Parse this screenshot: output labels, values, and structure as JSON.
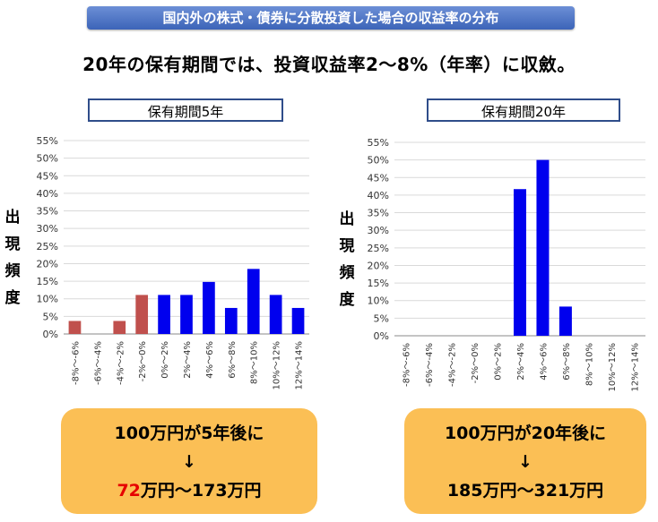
{
  "banner": "国内外の株式・債券に分散投資した場合の収益率の分布",
  "headline": "20年の保有期間では、投資収益率2～8%（年率）に収斂。",
  "y_axis_chars": [
    "出",
    "現",
    "頻",
    "度"
  ],
  "colors": {
    "negative": "#c0504d",
    "positive": "#0000ee",
    "result_box": "#fbbf55",
    "highlight": "#e60000"
  },
  "chart_data": [
    {
      "type": "bar",
      "title": "保有期間5年",
      "ylabel": "出現頻度",
      "ylim": [
        0,
        55
      ],
      "yticks": [
        "0%",
        "5%",
        "10%",
        "15%",
        "20%",
        "25%",
        "30%",
        "35%",
        "40%",
        "45%",
        "50%",
        "55%"
      ],
      "categories": [
        "-8%～-6%",
        "-6%～-4%",
        "-4%～-2%",
        "-2%～0%",
        "0%～2%",
        "2%～4%",
        "4%～6%",
        "6%～8%",
        "8%～10%",
        "10%～12%",
        "12%～14%"
      ],
      "values": [
        3.7,
        0,
        3.7,
        11.1,
        11.1,
        11.1,
        14.8,
        7.4,
        18.5,
        11.1,
        7.4
      ],
      "bar_colors": [
        "negative",
        "negative",
        "negative",
        "negative",
        "positive",
        "positive",
        "positive",
        "positive",
        "positive",
        "positive",
        "positive"
      ],
      "grid": true
    },
    {
      "type": "bar",
      "title": "保有期間20年",
      "ylabel": "出現頻度",
      "ylim": [
        0,
        55
      ],
      "yticks": [
        "0%",
        "5%",
        "10%",
        "15%",
        "20%",
        "25%",
        "30%",
        "35%",
        "40%",
        "45%",
        "50%",
        "55%"
      ],
      "categories": [
        "-8%～-6%",
        "-6%～-4%",
        "-4%～-2%",
        "-2%～0%",
        "0%～2%",
        "2%～4%",
        "4%～6%",
        "6%～8%",
        "8%～10%",
        "10%～12%",
        "12%～14%"
      ],
      "values": [
        0,
        0,
        0,
        0,
        0,
        41.7,
        50.0,
        8.3,
        0,
        0,
        0
      ],
      "bar_colors": [
        "positive",
        "positive",
        "positive",
        "positive",
        "positive",
        "positive",
        "positive",
        "positive",
        "positive",
        "positive",
        "positive"
      ],
      "grid": true
    }
  ],
  "results": [
    {
      "line1": "100万円が5年後に",
      "arrow": "↓",
      "low": "72",
      "rest": "万円～173万円"
    },
    {
      "line1": "100万円が20年後に",
      "arrow": "↓",
      "low": "185",
      "rest": "万円～321万円"
    }
  ]
}
